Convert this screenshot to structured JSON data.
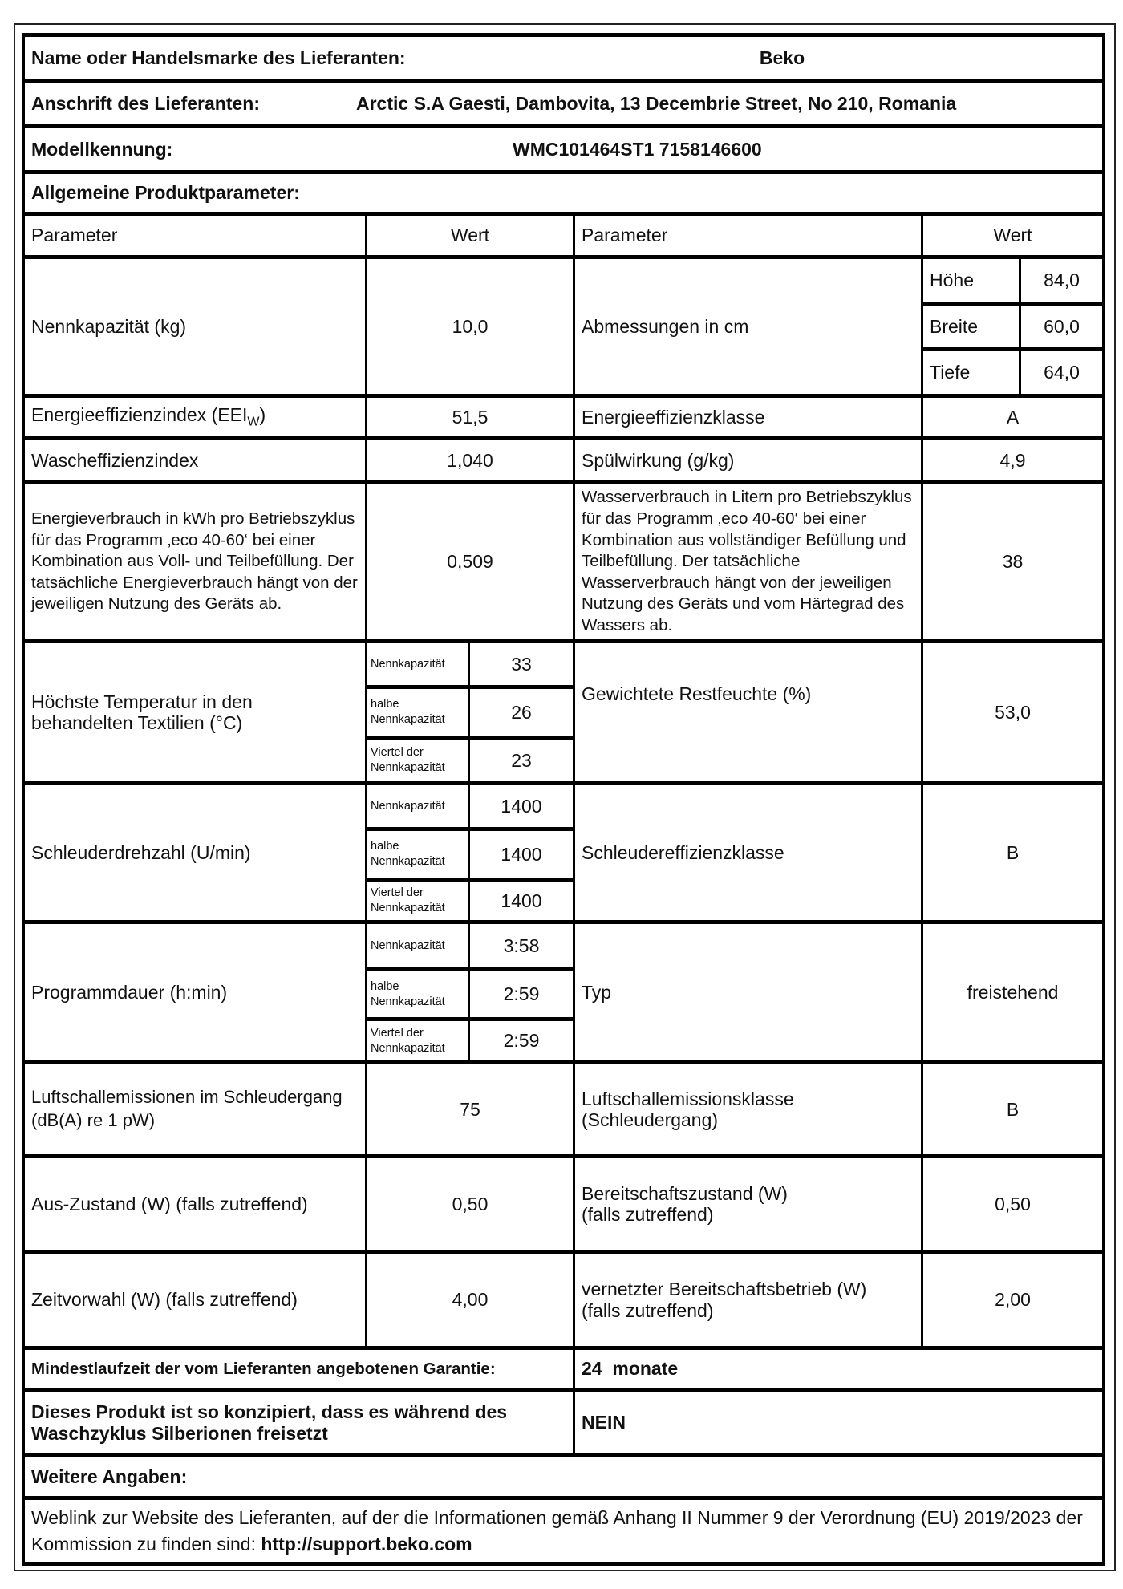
{
  "supplier": {
    "label": "Name oder Handelsmarke des Lieferanten:",
    "value": "Beko"
  },
  "address": {
    "label": "Anschrift des Lieferanten:",
    "value": "Arctic S.A  Gaesti, Dambovita, 13 Decembrie Street, No 210, Romania"
  },
  "model": {
    "label": "Modellkennung:",
    "value": "WMC101464ST1 7158146600"
  },
  "general_title": "Allgemeine Produktparameter:",
  "header": {
    "param": "Parameter",
    "value": "Wert"
  },
  "rows": {
    "capacity": {
      "label": "Nennkapazität (kg)",
      "value": "10,0"
    },
    "dimensions": {
      "label": "Abmessungen in cm",
      "items": [
        {
          "label": "Höhe",
          "value": "84,0"
        },
        {
          "label": "Breite",
          "value": "60,0"
        },
        {
          "label": "Tiefe",
          "value": "64,0"
        }
      ]
    },
    "eei": {
      "label": "Energieeffizienzindex (EEI",
      "sub": "W",
      "close": ")",
      "value": "51,5"
    },
    "energy_class": {
      "label": "Energieeffizienzklasse",
      "value": "A"
    },
    "wash_index": {
      "label": "Wascheffizienzindex",
      "value": "1,040"
    },
    "rinse": {
      "label": "Spülwirkung (g/kg)",
      "value": "4,9"
    },
    "energy_consumption": {
      "label": "Energieverbrauch in kWh pro Betriebszyklus für das Programm ‚eco 40-60‘ bei einer Kombination aus Voll- und Teilbefüllung. Der tatsächliche Energieverbrauch hängt von der jeweiligen Nutzung des Geräts ab.",
      "value": "0,509"
    },
    "water_consumption": {
      "label": "Wasserverbrauch in Litern pro Betriebszyklus für das Programm ‚eco 40-60‘ bei einer Kombination aus vollständiger Befüllung und Teilbefüllung. Der tatsächliche Wasserverbrauch hängt von der jeweiligen Nutzung des Geräts und vom Härtegrad des Wassers ab.",
      "value": "38"
    },
    "temperature": {
      "label": "Höchste Temperatur in den behandelten Textilien (°C)",
      "items": [
        {
          "label": "Nennkapazität",
          "value": "33"
        },
        {
          "label": "halbe Nennkapazität",
          "value": "26"
        },
        {
          "label": "Viertel der Nennkapazität",
          "value": "23"
        }
      ]
    },
    "moisture": {
      "label": "Gewichtete Restfeuchte (%)",
      "value": "53,0"
    },
    "spin": {
      "label": "Schleuderdrehzahl (U/min)",
      "items": [
        {
          "label": "Nennkapazität",
          "value": "1400"
        },
        {
          "label": "halbe Nennkapazität",
          "value": "1400"
        },
        {
          "label": "Viertel der Nennkapazität",
          "value": "1400"
        }
      ]
    },
    "spin_class": {
      "label": "Schleudereffizienzklasse",
      "value": "B"
    },
    "duration": {
      "label": "Programmdauer (h:min)",
      "items": [
        {
          "label": "Nennkapazität",
          "value": "3:58"
        },
        {
          "label": "halbe Nennkapazität",
          "value": "2:59"
        },
        {
          "label": "Viertel der Nennkapazität",
          "value": "2:59"
        }
      ]
    },
    "type": {
      "label": "Typ",
      "value": "freistehend"
    },
    "noise": {
      "label": "Luftschallemissionen im Schleudergang (dB(A) re 1 pW)",
      "value": "75"
    },
    "noise_class": {
      "label": "Luftschallemissionsklasse (Schleudergang)",
      "value": "B"
    },
    "off_mode": {
      "label": "Aus-Zustand (W) (falls zutreffend)",
      "value": "0,50"
    },
    "standby": {
      "label": "Bereitschaftszustand (W)",
      "label2": "(falls zutreffend)",
      "value": "0,50"
    },
    "delay_start": {
      "label": "Zeitvorwahl (W) (falls zutreffend)",
      "value": "4,00"
    },
    "networked_standby": {
      "label": "vernetzter Bereitschaftsbetrieb (W)",
      "label2": "(falls zutreffend)",
      "value": "2,00"
    }
  },
  "guarantee": {
    "label": "Mindestlaufzeit der vom Lieferanten angebotenen Garantie:",
    "value": "24  monate"
  },
  "silver": {
    "label": "Dieses Produkt ist so konzipiert, dass es während des Waschzyklus Silberionen freisetzt",
    "value": "NEIN"
  },
  "further_title": "Weitere Angaben:",
  "weblink": {
    "text": "Weblink zur Website des Lieferanten, auf der die Informationen gemäß Anhang II Nummer 9 der Verordnung (EU) 2019/2023 der Kommission zu finden sind: ",
    "url": "http://support.beko.com"
  }
}
